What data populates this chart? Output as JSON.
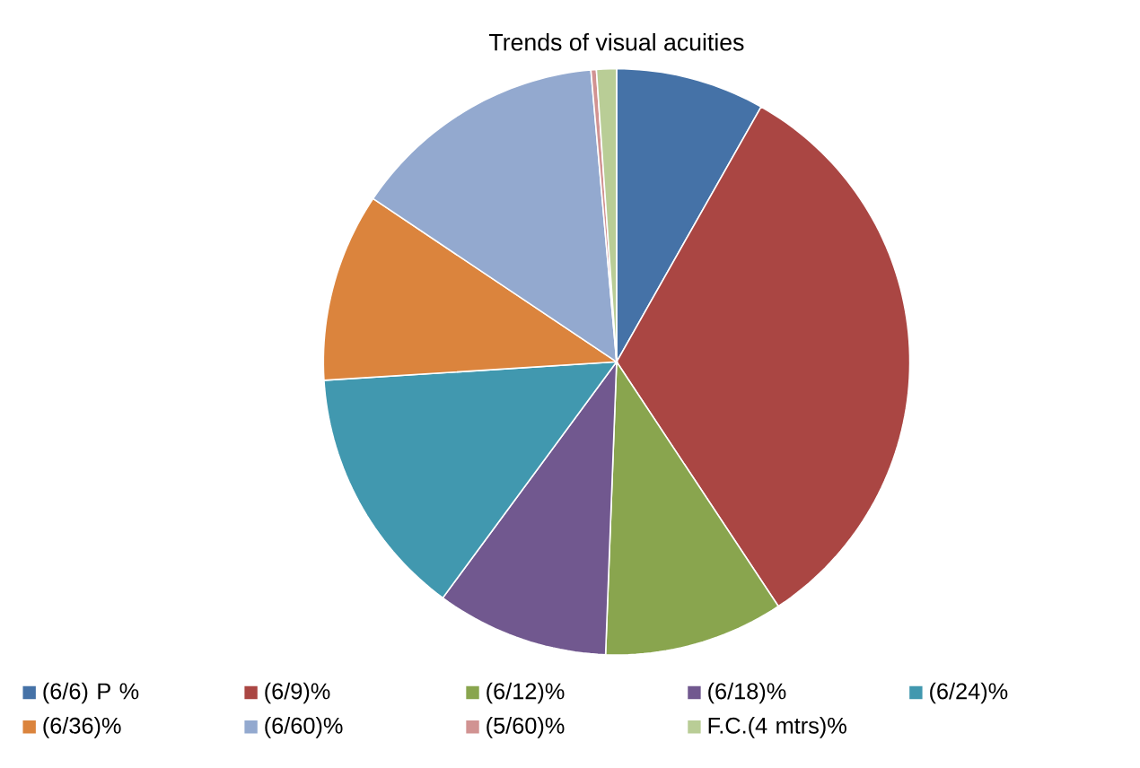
{
  "chart_data": {
    "type": "pie",
    "title": "Trends of visual acuities",
    "categories": [
      "(6/6) P %",
      "(6/9)%",
      "(6/12)%",
      "(6/18)%",
      "(6/24)%",
      "(6/36)%",
      "(6/60)%",
      "(5/60)%",
      "F.C.(4 mtrs)%"
    ],
    "values": [
      8.2,
      32.5,
      9.9,
      9.5,
      13.9,
      10.4,
      14.2,
      0.3,
      1.1
    ],
    "colors": [
      "#4572a7",
      "#aa4643",
      "#89a54e",
      "#71588f",
      "#4198af",
      "#db843d",
      "#93a9cf",
      "#d19392",
      "#b9cd96"
    ],
    "legend": "bottom"
  }
}
